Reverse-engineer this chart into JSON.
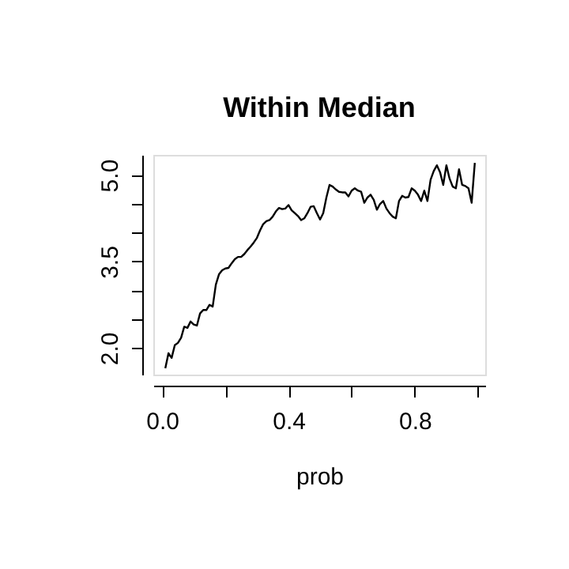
{
  "chart_data": {
    "type": "line",
    "title": "Within Median",
    "xlabel": "prob",
    "x": [
      0.01,
      0.02,
      0.03,
      0.04,
      0.05,
      0.06,
      0.07,
      0.08,
      0.09,
      0.1,
      0.11,
      0.12,
      0.13,
      0.14,
      0.15,
      0.16,
      0.17,
      0.18,
      0.19,
      0.2,
      0.21,
      0.22,
      0.23,
      0.24,
      0.25,
      0.26,
      0.27,
      0.28,
      0.29,
      0.3,
      0.31,
      0.32,
      0.33,
      0.34,
      0.35,
      0.36,
      0.37,
      0.38,
      0.39,
      0.4,
      0.41,
      0.42,
      0.43,
      0.44,
      0.45,
      0.46,
      0.47,
      0.48,
      0.49,
      0.5,
      0.51,
      0.52,
      0.53,
      0.54,
      0.55,
      0.56,
      0.57,
      0.58,
      0.59,
      0.6,
      0.61,
      0.62,
      0.63,
      0.64,
      0.65,
      0.66,
      0.67,
      0.68,
      0.69,
      0.7,
      0.71,
      0.72,
      0.73,
      0.74,
      0.75,
      0.76,
      0.77,
      0.78,
      0.79,
      0.8,
      0.81,
      0.82,
      0.83,
      0.84,
      0.85,
      0.86,
      0.87,
      0.88,
      0.89,
      0.9,
      0.91,
      0.92,
      0.93,
      0.94,
      0.95,
      0.96,
      0.97,
      0.98,
      0.99
    ],
    "series": [
      {
        "color": "#000000",
        "values": [
          1.65,
          1.91,
          1.83,
          2.05,
          2.09,
          2.18,
          2.37,
          2.35,
          2.46,
          2.41,
          2.39,
          2.6,
          2.66,
          2.66,
          2.75,
          2.72,
          3.1,
          3.28,
          3.35,
          3.38,
          3.39,
          3.47,
          3.54,
          3.58,
          3.58,
          3.63,
          3.7,
          3.76,
          3.83,
          3.91,
          4.04,
          4.15,
          4.2,
          4.22,
          4.28,
          4.37,
          4.43,
          4.41,
          4.42,
          4.48,
          4.39,
          4.34,
          4.29,
          4.22,
          4.25,
          4.34,
          4.45,
          4.46,
          4.34,
          4.23,
          4.34,
          4.61,
          4.83,
          4.8,
          4.75,
          4.71,
          4.7,
          4.7,
          4.63,
          4.73,
          4.77,
          4.73,
          4.71,
          4.52,
          4.61,
          4.66,
          4.57,
          4.4,
          4.5,
          4.55,
          4.42,
          4.34,
          4.28,
          4.25,
          4.55,
          4.64,
          4.61,
          4.62,
          4.77,
          4.73,
          4.66,
          4.55,
          4.73,
          4.55,
          4.92,
          5.07,
          5.17,
          5.05,
          4.83,
          5.17,
          4.94,
          4.8,
          4.77,
          5.1,
          4.83,
          4.81,
          4.77,
          4.52,
          5.21
        ]
      }
    ],
    "xlim": [
      -0.028,
      1.023
    ],
    "ylim": [
      1.54,
      5.35
    ],
    "xticks": [
      {
        "value": 0,
        "label": "0.0"
      },
      {
        "value": 0.2,
        "label": null
      },
      {
        "value": 0.4,
        "label": "0.4"
      },
      {
        "value": 0.6,
        "label": null
      },
      {
        "value": 0.8,
        "label": "0.8"
      },
      {
        "value": 1,
        "label": null
      }
    ],
    "yticks": [
      {
        "value": 2,
        "label": "2.0"
      },
      {
        "value": 2.5,
        "label": null
      },
      {
        "value": 3,
        "label": null
      },
      {
        "value": 3.5,
        "label": "3.5"
      },
      {
        "value": 4,
        "label": null
      },
      {
        "value": 4.5,
        "label": null
      },
      {
        "value": 5,
        "label": "5.0"
      }
    ],
    "grid": false,
    "line_style": "solid",
    "marker": "none"
  }
}
